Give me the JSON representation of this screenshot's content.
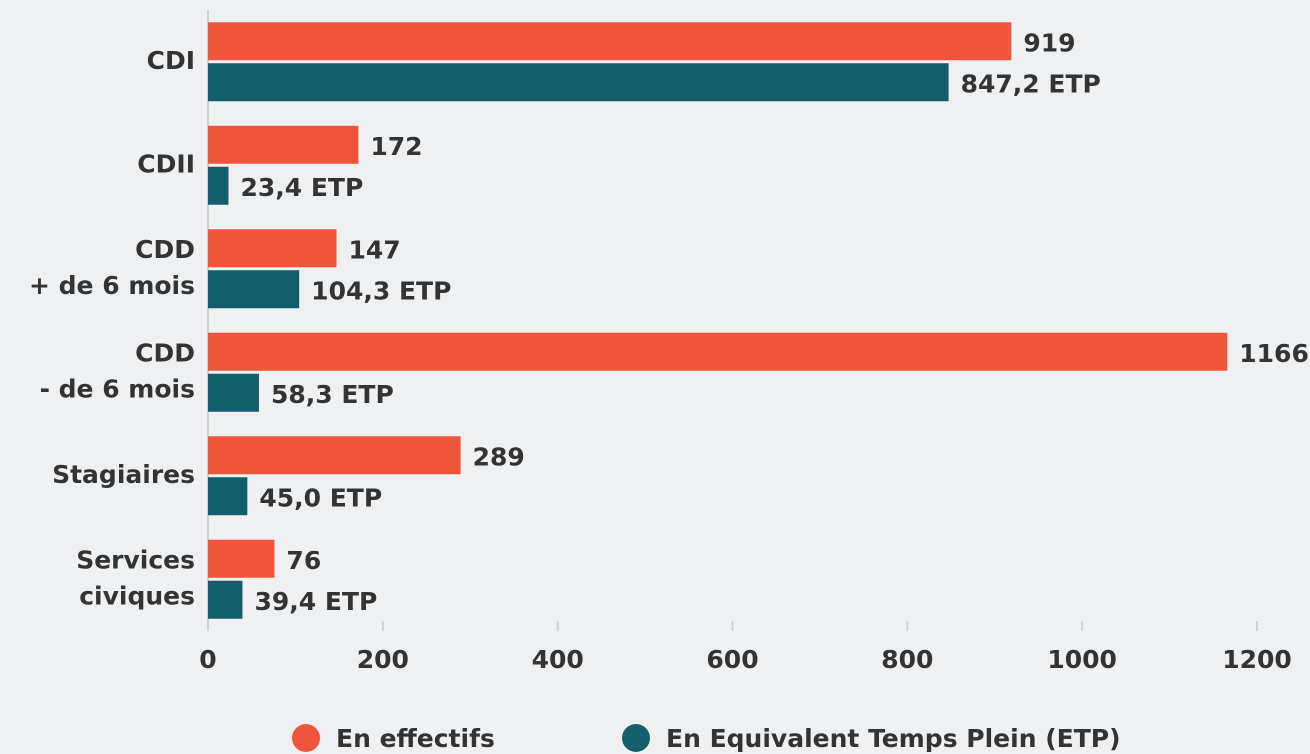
{
  "chart_data": {
    "type": "hbar",
    "categories": [
      [
        "CDI"
      ],
      [
        "CDII"
      ],
      [
        "CDD",
        "+ de 6 mois"
      ],
      [
        "CDD",
        "- de 6 mois"
      ],
      [
        "Stagiaires"
      ],
      [
        "Services",
        "civiques"
      ]
    ],
    "series": [
      {
        "name": "En effectifs",
        "color": "#ef553a",
        "values": [
          919,
          172,
          147,
          1166,
          289,
          76
        ]
      },
      {
        "name": "En Equivalent Temps Plein (ETP)",
        "color": "#135e6b",
        "values": [
          847.2,
          23.4,
          104.3,
          58.3,
          45.0,
          39.4
        ],
        "value_labels": [
          "847,2 ETP",
          "23,4 ETP",
          "104,3 ETP",
          "58,3 ETP",
          "45,0 ETP",
          "39,4 ETP"
        ]
      }
    ],
    "xlim": [
      0,
      1200
    ],
    "xticks": [
      0,
      200,
      400,
      600,
      800,
      1000,
      1200
    ],
    "legend": "bottom"
  }
}
